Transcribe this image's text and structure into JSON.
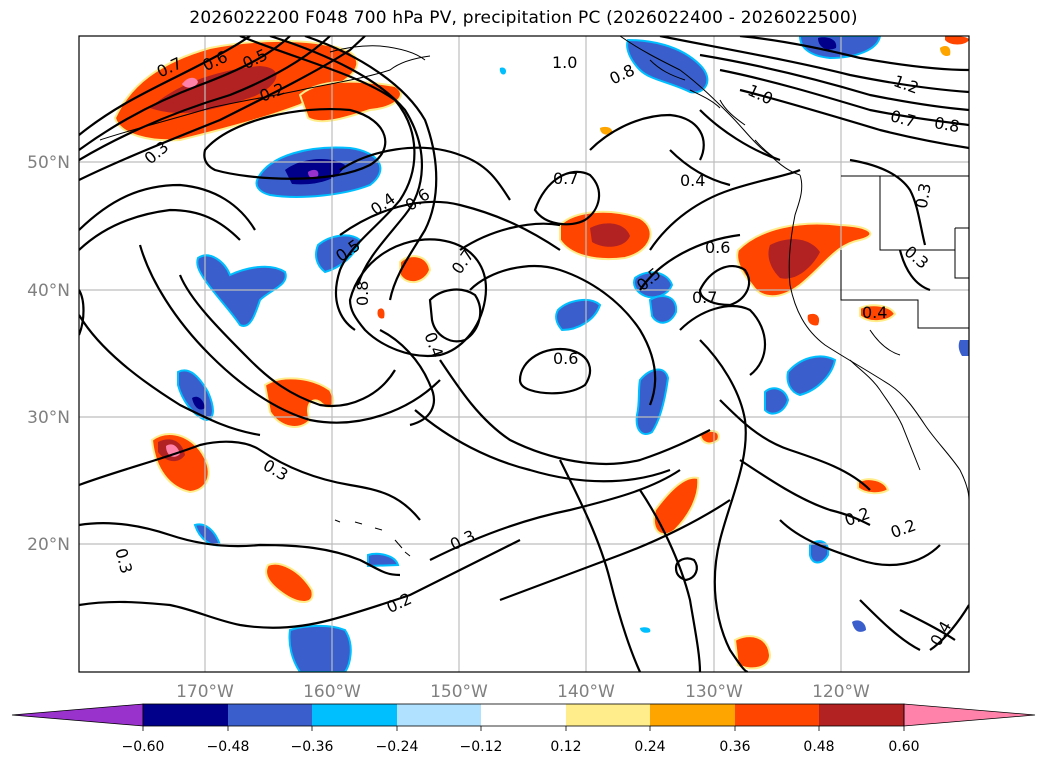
{
  "title": "2026022200 F048 700 hPa PV, precipitation PC (2026022400 - 2026022500)",
  "map": {
    "lat_labels": [
      "50°N",
      "40°N",
      "30°N",
      "20°N"
    ],
    "lon_labels": [
      "170°W",
      "160°W",
      "150°W",
      "140°W",
      "130°W",
      "120°W"
    ]
  },
  "contour_labels": [
    {
      "text": "0.7"
    },
    {
      "text": "0.6"
    },
    {
      "text": "0.5"
    },
    {
      "text": "0.2"
    },
    {
      "text": "0.3"
    },
    {
      "text": "1.0"
    },
    {
      "text": "0.8"
    },
    {
      "text": "1.0"
    },
    {
      "text": "1.2"
    },
    {
      "text": "0.7"
    },
    {
      "text": "0.8"
    },
    {
      "text": "0.7"
    },
    {
      "text": "0.4"
    },
    {
      "text": "0.4"
    },
    {
      "text": "0.6"
    },
    {
      "text": "0.5"
    },
    {
      "text": "0.7"
    },
    {
      "text": "0.8"
    },
    {
      "text": "0.4"
    },
    {
      "text": "0.6"
    },
    {
      "text": "0.5"
    },
    {
      "text": "0.7"
    },
    {
      "text": "0.6"
    },
    {
      "text": "0.3"
    },
    {
      "text": "0.3"
    },
    {
      "text": "0.4"
    },
    {
      "text": "0.3"
    },
    {
      "text": "0.3"
    },
    {
      "text": "0.2"
    },
    {
      "text": "0.2"
    },
    {
      "text": "0.2"
    },
    {
      "text": "0.3"
    },
    {
      "text": "0.4"
    }
  ],
  "colorbar": {
    "colors": [
      "#9932cc",
      "#00008b",
      "#3a5fcd",
      "#00bfff",
      "#b0e2ff",
      "#ffffff",
      "#ffec8b",
      "#ffa500",
      "#ff4500",
      "#b22222",
      "#ff82ab",
      "#ff82ab"
    ],
    "tick_labels": [
      "−0.60",
      "−0.48",
      "−0.36",
      "−0.24",
      "−0.12",
      "0.12",
      "0.24",
      "0.36",
      "0.48",
      "0.60"
    ]
  }
}
